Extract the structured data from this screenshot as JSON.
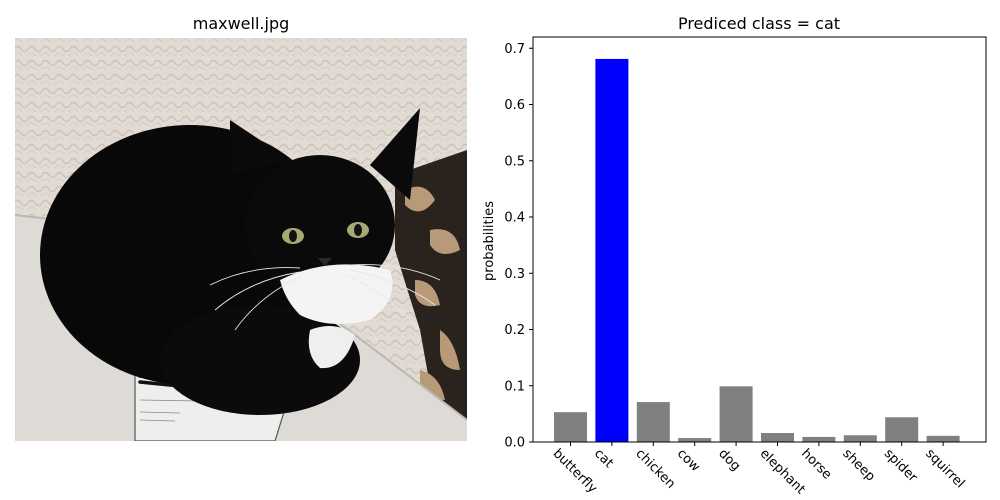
{
  "image_panel": {
    "title": "maxwell.jpg",
    "photo_icon": "black-and-white-cat-photo-icon"
  },
  "chart_data": {
    "type": "bar",
    "title": "Prediced class = cat",
    "xlabel": "",
    "ylabel": "probabilities",
    "categories": [
      "butterfly",
      "cat",
      "chicken",
      "cow",
      "dog",
      "elephant",
      "horse",
      "sheep",
      "spider",
      "squirrel"
    ],
    "values": [
      0.053,
      0.681,
      0.071,
      0.007,
      0.099,
      0.016,
      0.009,
      0.012,
      0.044,
      0.011
    ],
    "highlight": "cat",
    "ylim": [
      0,
      0.72
    ],
    "yticks": [
      "0.0",
      "0.1",
      "0.2",
      "0.3",
      "0.4",
      "0.5",
      "0.6",
      "0.7"
    ],
    "ytick_values": [
      0,
      0.1,
      0.2,
      0.3,
      0.4,
      0.5,
      0.6,
      0.7
    ],
    "grid": false,
    "colors": {
      "highlight": "#0000ff",
      "default": "#808080"
    }
  }
}
